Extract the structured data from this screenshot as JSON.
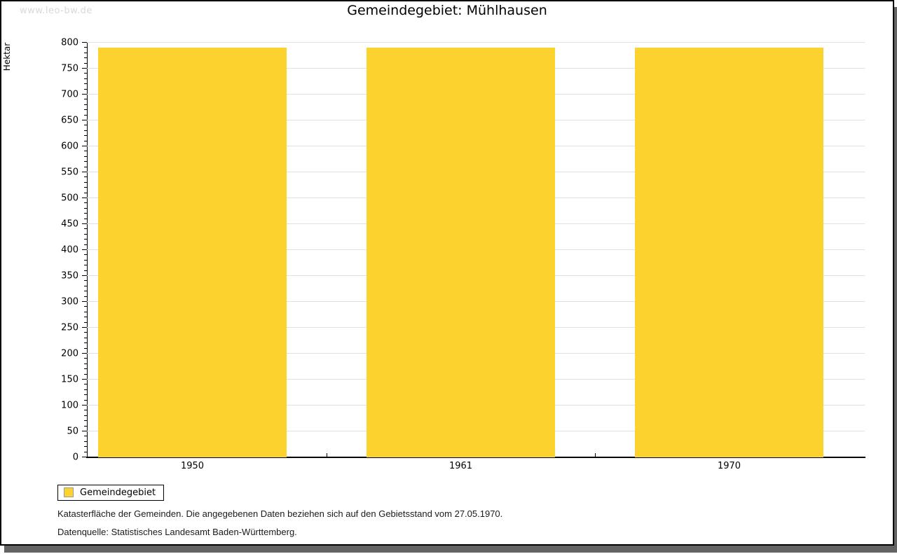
{
  "page": {
    "watermark": "www.leo-bw.de",
    "title": "Gemeindegebiet: Mühlhausen"
  },
  "chart_data": {
    "type": "bar",
    "title": "Gemeindegebiet: Mühlhausen",
    "categories": [
      "1950",
      "1961",
      "1970"
    ],
    "series": [
      {
        "name": "Gemeindegebiet",
        "values": [
          791,
          791,
          791
        ]
      }
    ],
    "xlabel": "",
    "ylabel": "Hektar",
    "ylim": [
      0,
      800
    ],
    "y_major_step": 50,
    "y_minor_step": 10,
    "grid": true,
    "legend_position": "bottom-left",
    "bar_color": "#fcd32e"
  },
  "legend": {
    "items": [
      {
        "label": "Gemeindegebiet",
        "color": "#fcd32e"
      }
    ]
  },
  "footer": {
    "line1": "Katasterfläche der Gemeinden. Die angegebenen Daten beziehen sich auf den Gebietsstand vom 27.05.1970.",
    "line2": "Datenquelle: Statistisches Landesamt Baden-Württemberg."
  }
}
